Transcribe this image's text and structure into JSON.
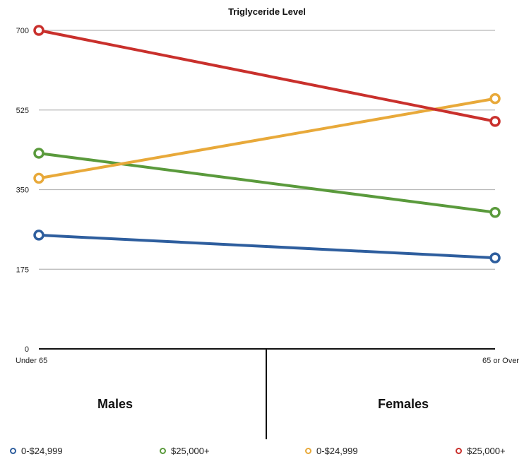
{
  "chart_data": {
    "type": "line",
    "title": "Triglyceride Level",
    "categories": [
      "Under 65",
      "65 or Over"
    ],
    "ylim": [
      0,
      700
    ],
    "yticks": [
      0,
      175,
      350,
      525,
      700
    ],
    "grid": true,
    "group_labels": [
      "Males",
      "Females"
    ],
    "series": [
      {
        "name": "0-$24,999",
        "values": [
          250,
          200
        ],
        "color": "#2e5e9e"
      },
      {
        "name": "$25,000+",
        "values": [
          430,
          300
        ],
        "color": "#5a9a3c"
      },
      {
        "name": "0-$24,999",
        "values": [
          375,
          550
        ],
        "color": "#e8a93a"
      },
      {
        "name": "$25,000+",
        "values": [
          700,
          500
        ],
        "color": "#c9302c"
      }
    ],
    "legend_position": "bottom"
  }
}
